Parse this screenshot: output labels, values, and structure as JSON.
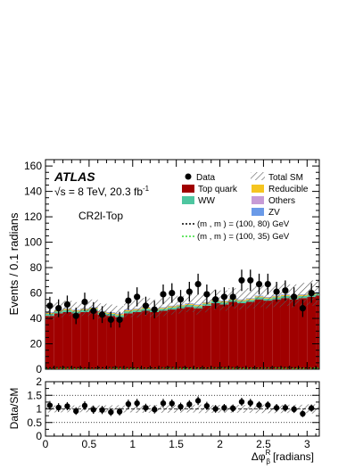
{
  "chart_data": [
    {
      "type": "bar",
      "subtype": "stacked-histogram-with-data-points",
      "experiment_label": "ATLAS",
      "energy_label": "√s = 8 TeV, 20.3 fb",
      "energy_label_sup": "-1",
      "region_label": "CR2l-Top",
      "ylabel": "Events / 0.1 radians",
      "xlabel": "Δφ",
      "xlabel_sub": "β",
      "xlabel_sup": "R",
      "xlabel_unit": "[radians]",
      "xlim": [
        0,
        3.14
      ],
      "ylim": [
        0,
        165
      ],
      "x_ticks": [
        "0",
        "0.5",
        "1",
        "1.5",
        "2",
        "2.5",
        "3"
      ],
      "y_ticks": [
        "0",
        "20",
        "40",
        "60",
        "80",
        "100",
        "120",
        "140",
        "160"
      ],
      "legend": {
        "data": "Data",
        "total_sm": "Total SM",
        "top": "Top quark",
        "reducible": "Reducible",
        "ww": "WW",
        "others": "Others",
        "zv": "ZV",
        "signal1": "(m  , m  ) = (100, 80) GeV",
        "signal2": "(m  , m  ) = (100, 35) GeV"
      },
      "colors": {
        "top": "#a00000",
        "reducible": "#f5c520",
        "ww": "#4ec6a0",
        "others": "#c79bd6",
        "zv": "#6a9ae8",
        "signal1": "#000000",
        "signal2": "#33dd33",
        "hatch": "#555555"
      },
      "bin_edges_start": 0.0,
      "bin_width": 0.1,
      "series": [
        {
          "name": "Top quark",
          "values": [
            42,
            44,
            45,
            44,
            45,
            46,
            43,
            42,
            41,
            44,
            45,
            46,
            45,
            46,
            47,
            48,
            49,
            48,
            50,
            52,
            51,
            53,
            52,
            53,
            55,
            54,
            55,
            56,
            55,
            56,
            57,
            58
          ]
        },
        {
          "name": "WW",
          "values": [
            1.5,
            1.5,
            1.6,
            1.5,
            1.6,
            1.5,
            1.5,
            1.6,
            1.5,
            1.6,
            1.5,
            1.6,
            1.6,
            1.5,
            1.6,
            1.5,
            1.6,
            1.6,
            1.5,
            1.6,
            1.6,
            1.5,
            1.6,
            1.5,
            1.6,
            1.6,
            1.5,
            1.6,
            1.5,
            1.6,
            1.6,
            1.5
          ]
        },
        {
          "name": "Reducible",
          "values": [
            0.8,
            0.8,
            0.9,
            0.8,
            0.8,
            0.9,
            0.8,
            0.8,
            0.9,
            0.8,
            0.8,
            0.9,
            0.8,
            0.8,
            0.9,
            0.8,
            0.8,
            0.9,
            0.8,
            0.8,
            0.9,
            0.8,
            0.8,
            0.9,
            0.8,
            0.8,
            0.9,
            0.8,
            0.8,
            0.9,
            0.8,
            0.8
          ]
        },
        {
          "name": "Others",
          "values": [
            0.3,
            0.3,
            0.3,
            0.3,
            0.3,
            0.3,
            0.3,
            0.3,
            0.3,
            0.3,
            0.3,
            0.3,
            0.3,
            0.3,
            0.3,
            0.3,
            0.3,
            0.3,
            0.3,
            0.3,
            0.3,
            0.3,
            0.3,
            0.3,
            0.3,
            0.3,
            0.3,
            0.3,
            0.3,
            0.3,
            0.3,
            0.3
          ]
        },
        {
          "name": "ZV",
          "values": [
            0.2,
            0.2,
            0.2,
            0.2,
            0.2,
            0.2,
            0.2,
            0.2,
            0.2,
            0.2,
            0.2,
            0.2,
            0.2,
            0.2,
            0.2,
            0.2,
            0.2,
            0.2,
            0.2,
            0.2,
            0.2,
            0.2,
            0.2,
            0.2,
            0.2,
            0.2,
            0.2,
            0.2,
            0.2,
            0.2,
            0.2,
            0.2
          ]
        }
      ],
      "sm_uncertainty": [
        6,
        6,
        6,
        6,
        6,
        6,
        6,
        6,
        6,
        6,
        7,
        7,
        7,
        7,
        7,
        7,
        7,
        8,
        8,
        8,
        8,
        8,
        8,
        8,
        9,
        9,
        9,
        9,
        9,
        9,
        10,
        10
      ],
      "data": {
        "x": [
          0.05,
          0.15,
          0.25,
          0.35,
          0.45,
          0.55,
          0.65,
          0.75,
          0.85,
          0.95,
          1.05,
          1.15,
          1.25,
          1.35,
          1.45,
          1.55,
          1.65,
          1.75,
          1.85,
          1.95,
          2.05,
          2.15,
          2.25,
          2.35,
          2.45,
          2.55,
          2.65,
          2.75,
          2.85,
          2.95,
          3.05
        ],
        "y": [
          50,
          48,
          51,
          42,
          53,
          46,
          43,
          39,
          39,
          54,
          57,
          50,
          47,
          59,
          60,
          55,
          61,
          67,
          59,
          55,
          57,
          57,
          70,
          70,
          67,
          67,
          61,
          62,
          57,
          48,
          60
        ],
        "err": [
          7,
          7,
          7,
          6.5,
          7.3,
          6.8,
          6.6,
          6.2,
          6.2,
          7.3,
          7.5,
          7.1,
          6.9,
          7.7,
          7.7,
          7.4,
          7.8,
          8.2,
          7.7,
          7.4,
          7.5,
          7.5,
          8.4,
          8.4,
          8.2,
          8.2,
          7.8,
          7.9,
          7.5,
          6.9,
          7.7
        ]
      }
    },
    {
      "type": "scatter",
      "subtype": "ratio-panel",
      "ylabel": "Data/SM",
      "ylim": [
        0,
        2
      ],
      "y_ticks": [
        "0",
        "0.5",
        "1",
        "1.5",
        "2"
      ],
      "ref_lines": [
        0.5,
        1.0,
        1.5
      ],
      "ratio": {
        "x": [
          0.05,
          0.15,
          0.25,
          0.35,
          0.45,
          0.55,
          0.65,
          0.75,
          0.85,
          0.95,
          1.05,
          1.15,
          1.25,
          1.35,
          1.45,
          1.55,
          1.65,
          1.75,
          1.85,
          1.95,
          2.05,
          2.15,
          2.25,
          2.35,
          2.45,
          2.55,
          2.65,
          2.75,
          2.85,
          2.95,
          3.05
        ],
        "y": [
          1.13,
          1.05,
          1.1,
          0.92,
          1.12,
          0.97,
          0.96,
          0.88,
          0.9,
          1.18,
          1.21,
          1.04,
          0.98,
          1.21,
          1.2,
          1.08,
          1.17,
          1.3,
          1.11,
          1.0,
          1.04,
          1.02,
          1.26,
          1.22,
          1.14,
          1.14,
          1.04,
          1.04,
          0.99,
          0.82,
          1.03
        ],
        "err": [
          0.16,
          0.16,
          0.15,
          0.14,
          0.16,
          0.15,
          0.15,
          0.14,
          0.14,
          0.16,
          0.16,
          0.15,
          0.15,
          0.16,
          0.15,
          0.15,
          0.15,
          0.16,
          0.15,
          0.14,
          0.14,
          0.14,
          0.15,
          0.15,
          0.14,
          0.14,
          0.14,
          0.14,
          0.13,
          0.12,
          0.13
        ]
      }
    }
  ]
}
